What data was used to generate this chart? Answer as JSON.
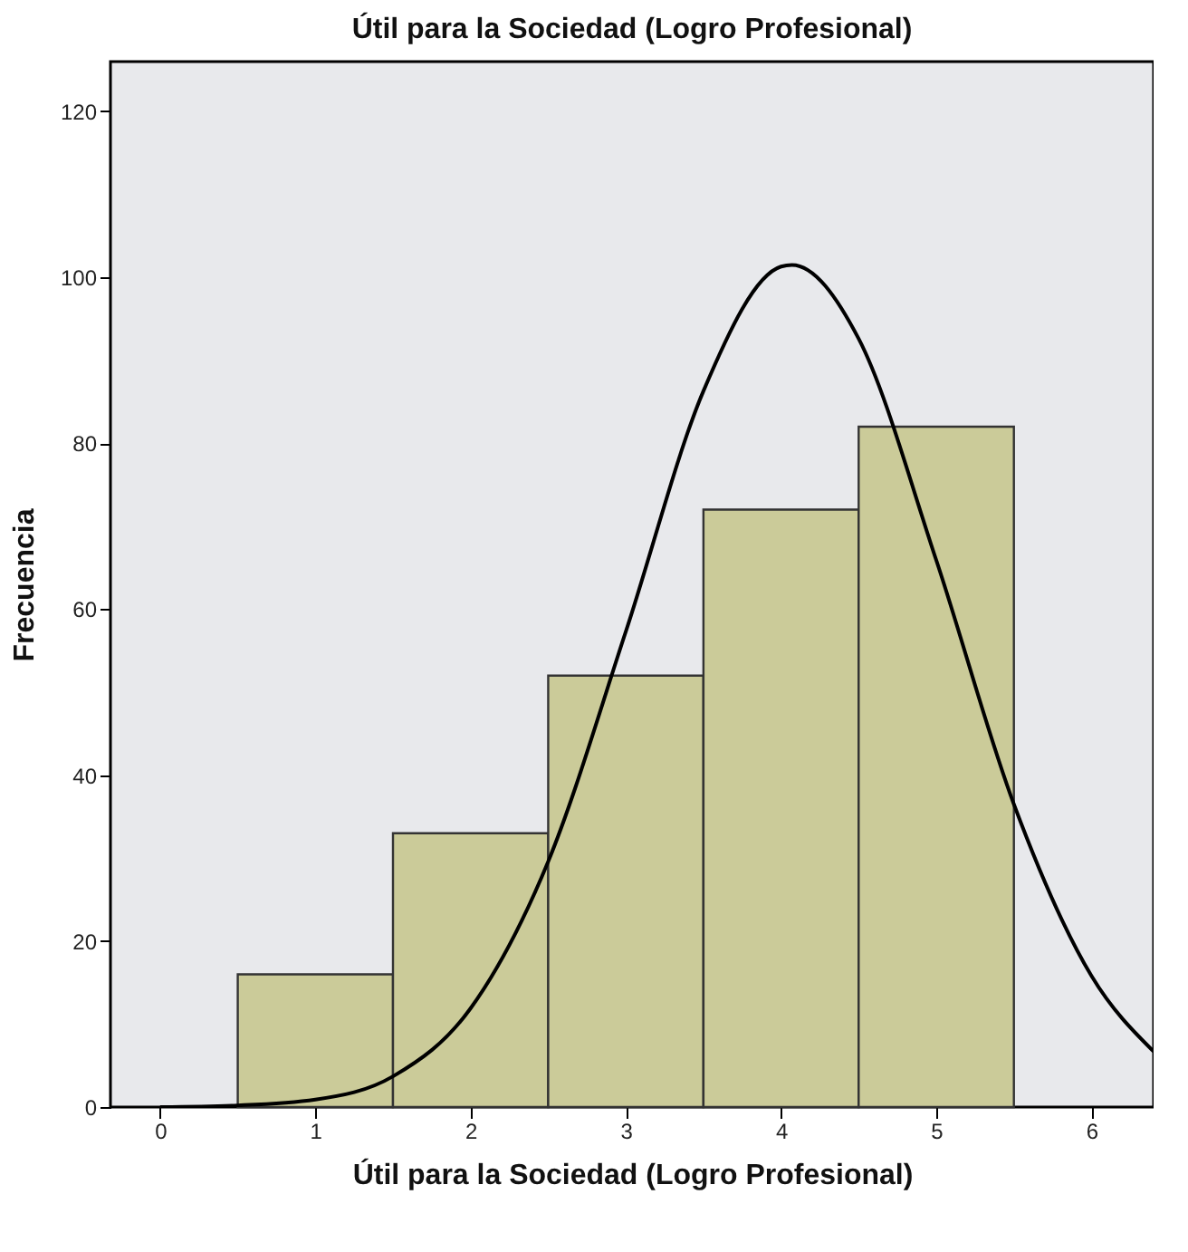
{
  "chart_data": {
    "type": "histogram",
    "title": "Útil para la Sociedad (Logro Profesional)",
    "xlabel": "Útil para la Sociedad (Logro Profesional)",
    "ylabel": "Frecuencia",
    "xlim": [
      -0.32,
      6.4
    ],
    "xticks": [
      0,
      1,
      2,
      3,
      4,
      5,
      6
    ],
    "ylim": [
      0,
      126
    ],
    "yticks": [
      0,
      20,
      40,
      60,
      80,
      100,
      120
    ],
    "grid": false,
    "series": [
      {
        "color": "#cbcb99",
        "bins": [
          0.5,
          1.5,
          2.5,
          3.5,
          4.5,
          5.5
        ],
        "values": [
          16,
          33,
          52,
          72,
          82
        ]
      },
      {
        "type": "line",
        "color": "#000000",
        "x": [
          0,
          0.5,
          1,
          1.5,
          2,
          2.5,
          3,
          3.5,
          4,
          4.07,
          4.5,
          5,
          5.5,
          6,
          6.4
        ],
        "values": [
          0,
          0.2,
          0.9,
          3.7,
          11.9,
          29.6,
          57.3,
          86.3,
          101.3,
          101.5,
          92.6,
          65.9,
          36.5,
          15.8,
          6.7
        ]
      }
    ]
  }
}
